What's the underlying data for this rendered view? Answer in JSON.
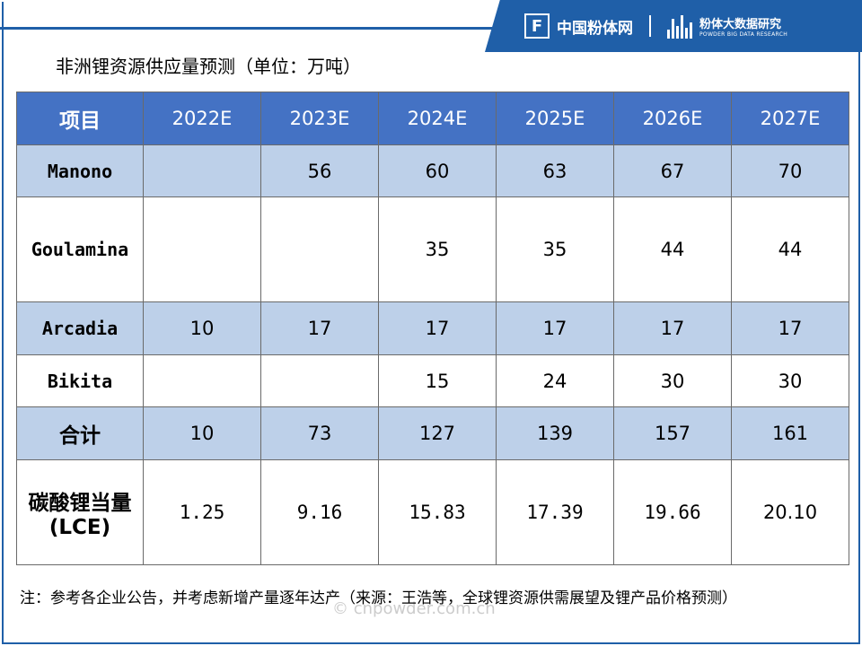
{
  "brand": {
    "logo_glyph": "F",
    "name": "中国粉体网",
    "research_cn": "粉体大数据研究",
    "research_en": "POWDER BIG DATA RESEARCH"
  },
  "title": "非洲锂资源供应量预测（单位：万吨）",
  "table": {
    "header": [
      "项目",
      "2022E",
      "2023E",
      "2024E",
      "2025E",
      "2026E",
      "2027E"
    ],
    "rows": [
      {
        "label": "Manono",
        "values": [
          "",
          "56",
          "60",
          "63",
          "67",
          "70"
        ]
      },
      {
        "label": "Goulamina",
        "values": [
          "",
          "",
          "35",
          "35",
          "44",
          "44"
        ]
      },
      {
        "label": "Arcadia",
        "values": [
          "10",
          "17",
          "17",
          "17",
          "17",
          "17"
        ]
      },
      {
        "label": "Bikita",
        "values": [
          "",
          "",
          "15",
          "24",
          "30",
          "30"
        ]
      },
      {
        "label": "合计",
        "values": [
          "10",
          "73",
          "127",
          "139",
          "157",
          "161"
        ]
      },
      {
        "label": "碳酸锂当量(LCE)",
        "values": [
          "1.25",
          "9.16",
          "15.83",
          "17.39",
          "19.66",
          "20.10"
        ]
      }
    ]
  },
  "watermark": "© cnpowder.com.cn",
  "note": "注：参考各企业公告，并考虑新增产量逐年达产（来源：王浩等，全球锂资源供需展望及锂产品价格预测）",
  "colors": {
    "brand_blue": "#1f5fa8",
    "header_blue": "#4472c4",
    "row_shade": "#bdd0e9"
  }
}
